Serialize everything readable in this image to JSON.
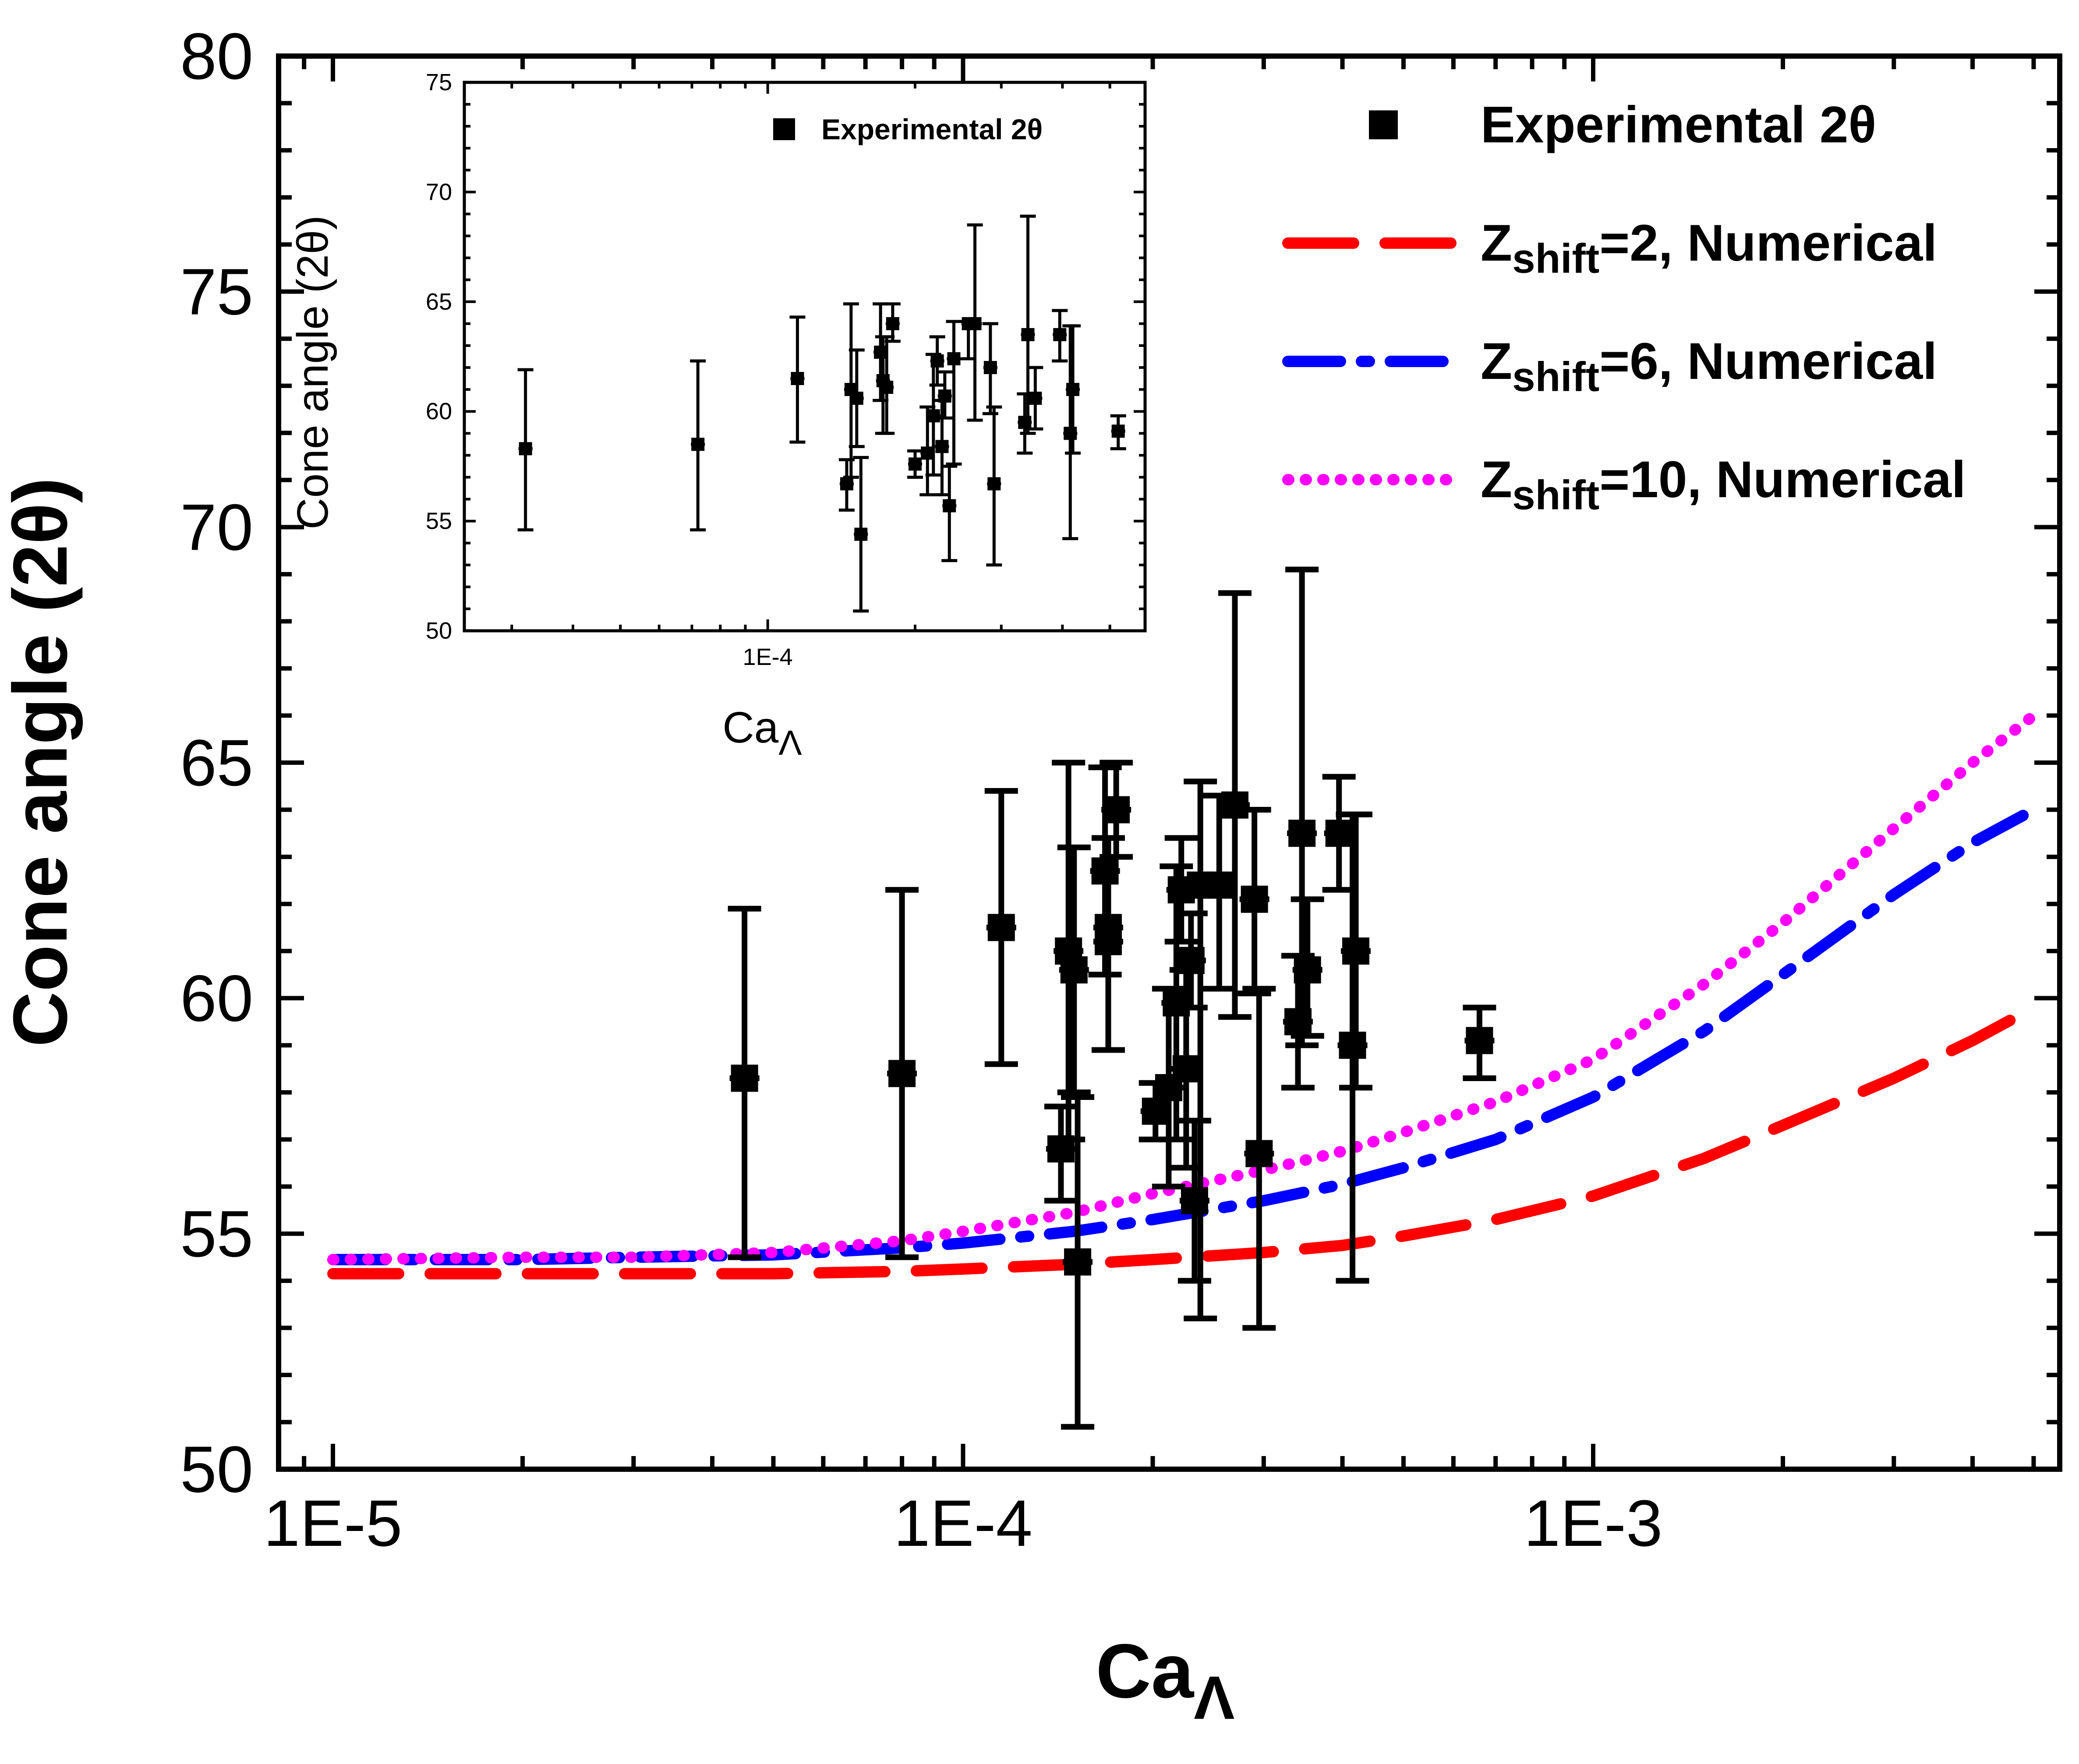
{
  "chart_data": [
    {
      "type": "scatter",
      "title": "",
      "xscale": "log",
      "xlim": [
        8.2e-06,
        0.0055
      ],
      "ylim": [
        50,
        80
      ],
      "xlabel": "Ca",
      "xlabel_sub": "Λ",
      "ylabel": "Cone angle (2θ)",
      "xticks": [
        1e-05,
        0.0001,
        0.001
      ],
      "xtick_labels": [
        "1E-5",
        "1E-4",
        "1E-3"
      ],
      "yticks": [
        50,
        55,
        60,
        65,
        70,
        75,
        80
      ],
      "ytick_labels": [
        "50",
        "55",
        "60",
        "65",
        "70",
        "75",
        "80"
      ],
      "grid": false,
      "legend_position": "top-right",
      "legend": [
        {
          "label": "Experimental 2θ",
          "marker": "square",
          "color": "#000000"
        },
        {
          "label_main": "Z",
          "label_sub": "shift",
          "label_rest": "=2, Numerical",
          "style": "dash",
          "color": "#ff0000"
        },
        {
          "label_main": "Z",
          "label_sub": "shift",
          "label_rest": "=6, Numerical",
          "style": "dash-dot",
          "color": "#0000ff"
        },
        {
          "label_main": "Z",
          "label_sub": "shift",
          "label_rest": "=10, Numerical",
          "style": "dot",
          "color": "#ff00ff"
        }
      ],
      "series": [
        {
          "name": "Experimental 2θ",
          "kind": "scatter",
          "points": [
            {
              "x": 4.5e-05,
              "y": 58.3,
              "yerr_low": 54.5,
              "yerr_high": 61.9
            },
            {
              "x": 8e-05,
              "y": 58.4,
              "yerr_low": 54.5,
              "yerr_high": 62.3
            },
            {
              "x": 0.000115,
              "y": 61.5,
              "yerr_low": 58.6,
              "yerr_high": 64.4
            },
            {
              "x": 0.000143,
              "y": 56.8,
              "yerr_low": 55.7,
              "yerr_high": 57.7
            },
            {
              "x": 0.000147,
              "y": 61.0,
              "yerr_low": 57.0,
              "yerr_high": 65.0
            },
            {
              "x": 0.00015,
              "y": 60.6,
              "yerr_low": 58.0,
              "yerr_high": 63.2
            },
            {
              "x": 0.000152,
              "y": 54.4,
              "yerr_low": 50.9,
              "yerr_high": 57.9
            },
            {
              "x": 0.000168,
              "y": 62.7,
              "yerr_low": 60.5,
              "yerr_high": 64.9
            },
            {
              "x": 0.00017,
              "y": 61.5,
              "yerr_low": 58.9,
              "yerr_high": 63.4
            },
            {
              "x": 0.00017,
              "y": 61.2,
              "yerr_low": 58.9,
              "yerr_high": 63.4
            },
            {
              "x": 0.000175,
              "y": 64.0,
              "yerr_low": 63.0,
              "yerr_high": 65.0
            },
            {
              "x": 0.000202,
              "y": 57.6,
              "yerr_low": 57.0,
              "yerr_high": 58.2
            },
            {
              "x": 0.000212,
              "y": 58.1,
              "yerr_low": 56.0,
              "yerr_high": 60.2
            },
            {
              "x": 0.000218,
              "y": 59.9,
              "yerr_low": 57.0,
              "yerr_high": 62.8
            },
            {
              "x": 0.000222,
              "y": 62.3,
              "yerr_low": 61.2,
              "yerr_high": 63.4
            },
            {
              "x": 0.000226,
              "y": 58.5,
              "yerr_low": 56.4,
              "yerr_high": 60.6
            },
            {
              "x": 0.00023,
              "y": 60.8,
              "yerr_low": 59.8,
              "yerr_high": 61.8
            },
            {
              "x": 0.000233,
              "y": 55.7,
              "yerr_low": 54.0,
              "yerr_high": 57.4
            },
            {
              "x": 0.000238,
              "y": 62.4,
              "yerr_low": 53.2,
              "yerr_high": 64.6
            },
            {
              "x": 0.000255,
              "y": 62.4,
              "yerr_low": 60.2,
              "yerr_high": 64.3
            },
            {
              "x": 0.00027,
              "y": 64.1,
              "yerr_low": 59.6,
              "yerr_high": 68.6
            },
            {
              "x": 0.00029,
              "y": 62.1,
              "yerr_low": 60.1,
              "yerr_high": 64.0
            },
            {
              "x": 0.000295,
              "y": 56.7,
              "yerr_low": 53.0,
              "yerr_high": 60.2
            },
            {
              "x": 0.00034,
              "y": 59.5,
              "yerr_low": 58.1,
              "yerr_high": 60.9
            },
            {
              "x": 0.000345,
              "y": 63.5,
              "yerr_low": 59.0,
              "yerr_high": 69.1
            },
            {
              "x": 0.000352,
              "y": 60.6,
              "yerr_low": 59.2,
              "yerr_high": 62.1
            },
            {
              "x": 0.000395,
              "y": 63.5,
              "yerr_low": 62.3,
              "yerr_high": 64.7
            },
            {
              "x": 0.000415,
              "y": 59.0,
              "yerr_low": 54.0,
              "yerr_high": 63.9
            },
            {
              "x": 0.00042,
              "y": 61.0,
              "yerr_low": 58.1,
              "yerr_high": 63.9
            },
            {
              "x": 0.00066,
              "y": 59.1,
              "yerr_low": 58.3,
              "yerr_high": 59.8
            }
          ]
        },
        {
          "name": "Zshift=2, Numerical",
          "kind": "line",
          "color": "#ff0000",
          "x": [
            1e-05,
            2e-05,
            3e-05,
            5e-05,
            8e-05,
            0.0001,
            0.00015,
            0.0002,
            0.0003,
            0.0004,
            0.0005,
            0.0007,
            0.001,
            0.0015,
            0.002,
            0.003,
            0.004,
            0.005
          ],
          "y": [
            54.15,
            54.15,
            54.15,
            54.15,
            54.2,
            54.25,
            54.35,
            54.45,
            54.6,
            54.75,
            54.95,
            55.3,
            55.8,
            56.6,
            57.3,
            58.3,
            59.1,
            59.8
          ]
        },
        {
          "name": "Zshift=6, Numerical",
          "kind": "line",
          "color": "#0000ff",
          "x": [
            1e-05,
            2e-05,
            3e-05,
            5e-05,
            8e-05,
            0.0001,
            0.00015,
            0.0002,
            0.0003,
            0.0004,
            0.0005,
            0.0007,
            0.001,
            0.0015,
            0.002,
            0.003,
            0.004,
            0.005
          ],
          "y": [
            54.45,
            54.45,
            54.5,
            54.55,
            54.7,
            54.8,
            55.05,
            55.3,
            55.7,
            56.05,
            56.4,
            57.0,
            57.9,
            59.3,
            60.5,
            62.2,
            63.3,
            64.0
          ]
        },
        {
          "name": "Zshift=10, Numerical",
          "kind": "line",
          "color": "#ff00ff",
          "x": [
            1e-05,
            2e-05,
            3e-05,
            5e-05,
            8e-05,
            0.0001,
            0.00015,
            0.0002,
            0.0003,
            0.0004,
            0.0005,
            0.0007,
            0.001,
            0.0015,
            0.002,
            0.003,
            0.004,
            0.005
          ],
          "y": [
            54.45,
            54.5,
            54.5,
            54.6,
            54.85,
            55.05,
            55.45,
            55.85,
            56.35,
            56.75,
            57.15,
            57.8,
            58.7,
            60.3,
            61.6,
            63.6,
            65.0,
            66.0
          ]
        }
      ]
    },
    {
      "type": "scatter",
      "title": "",
      "inset": true,
      "xscale": "log",
      "xlim": [
        2.4e-05,
        0.00059
      ],
      "ylim": [
        50,
        75
      ],
      "xlabel": "Ca",
      "xlabel_sub": "Λ",
      "ylabel": "Cone angle (2θ)",
      "xticks": [
        0.0001
      ],
      "xtick_labels": [
        "1E-4"
      ],
      "yticks": [
        50,
        55,
        60,
        65,
        70,
        75
      ],
      "ytick_labels": [
        "50",
        "55",
        "60",
        "65",
        "70",
        "75"
      ],
      "grid": false,
      "legend_position": "top-right",
      "legend": [
        {
          "label": "Experimental 2θ",
          "marker": "square",
          "color": "#000000"
        }
      ],
      "series": [
        {
          "name": "Experimental 2θ",
          "kind": "scatter",
          "points": [
            {
              "x": 3.2e-05,
              "y": 58.3,
              "yerr_low": 54.6,
              "yerr_high": 61.9
            },
            {
              "x": 7.2e-05,
              "y": 58.5,
              "yerr_low": 54.6,
              "yerr_high": 62.3
            },
            {
              "x": 0.000115,
              "y": 61.5,
              "yerr_low": 58.6,
              "yerr_high": 64.3
            },
            {
              "x": 0.000145,
              "y": 56.7,
              "yerr_low": 55.5,
              "yerr_high": 57.8
            },
            {
              "x": 0.000148,
              "y": 61.0,
              "yerr_low": 57.0,
              "yerr_high": 64.9
            },
            {
              "x": 0.000152,
              "y": 60.6,
              "yerr_low": 58.4,
              "yerr_high": 62.8
            },
            {
              "x": 0.000155,
              "y": 54.4,
              "yerr_low": 50.9,
              "yerr_high": 57.9
            },
            {
              "x": 0.00017,
              "y": 62.7,
              "yerr_low": 60.5,
              "yerr_high": 64.9
            },
            {
              "x": 0.000172,
              "y": 61.4,
              "yerr_low": 59.0,
              "yerr_high": 63.4
            },
            {
              "x": 0.000175,
              "y": 61.1,
              "yerr_low": 59.0,
              "yerr_high": 63.4
            },
            {
              "x": 0.00018,
              "y": 64.0,
              "yerr_low": 63.2,
              "yerr_high": 64.9
            },
            {
              "x": 0.0002,
              "y": 57.6,
              "yerr_low": 57.0,
              "yerr_high": 58.2
            },
            {
              "x": 0.000212,
              "y": 58.1,
              "yerr_low": 56.2,
              "yerr_high": 60.2
            },
            {
              "x": 0.000218,
              "y": 59.8,
              "yerr_low": 57.1,
              "yerr_high": 62.6
            },
            {
              "x": 0.000222,
              "y": 62.3,
              "yerr_low": 61.2,
              "yerr_high": 63.4
            },
            {
              "x": 0.000227,
              "y": 58.4,
              "yerr_low": 56.2,
              "yerr_high": 60.5
            },
            {
              "x": 0.00023,
              "y": 60.7,
              "yerr_low": 59.7,
              "yerr_high": 61.8
            },
            {
              "x": 0.000235,
              "y": 55.7,
              "yerr_low": 53.2,
              "yerr_high": 57.5
            },
            {
              "x": 0.00024,
              "y": 62.4,
              "yerr_low": 57.6,
              "yerr_high": 64.1
            },
            {
              "x": 0.000257,
              "y": 64.0,
              "yerr_low": 62.4,
              "yerr_high": 64.1
            },
            {
              "x": 0.000265,
              "y": 64.0,
              "yerr_low": 59.6,
              "yerr_high": 68.5
            },
            {
              "x": 0.000285,
              "y": 62.0,
              "yerr_low": 59.9,
              "yerr_high": 64.0
            },
            {
              "x": 0.00029,
              "y": 56.7,
              "yerr_low": 53.0,
              "yerr_high": 60.2
            },
            {
              "x": 0.000335,
              "y": 59.5,
              "yerr_low": 58.1,
              "yerr_high": 60.8
            },
            {
              "x": 0.00034,
              "y": 63.5,
              "yerr_low": 59.0,
              "yerr_high": 68.9
            },
            {
              "x": 0.000352,
              "y": 60.6,
              "yerr_low": 59.2,
              "yerr_high": 62.0
            },
            {
              "x": 0.000395,
              "y": 63.5,
              "yerr_low": 62.3,
              "yerr_high": 64.6
            },
            {
              "x": 0.000415,
              "y": 59.0,
              "yerr_low": 54.2,
              "yerr_high": 63.9
            },
            {
              "x": 0.00042,
              "y": 61.0,
              "yerr_low": 58.1,
              "yerr_high": 63.9
            },
            {
              "x": 0.00052,
              "y": 59.1,
              "yerr_low": 58.3,
              "yerr_high": 59.8
            }
          ]
        }
      ]
    }
  ]
}
